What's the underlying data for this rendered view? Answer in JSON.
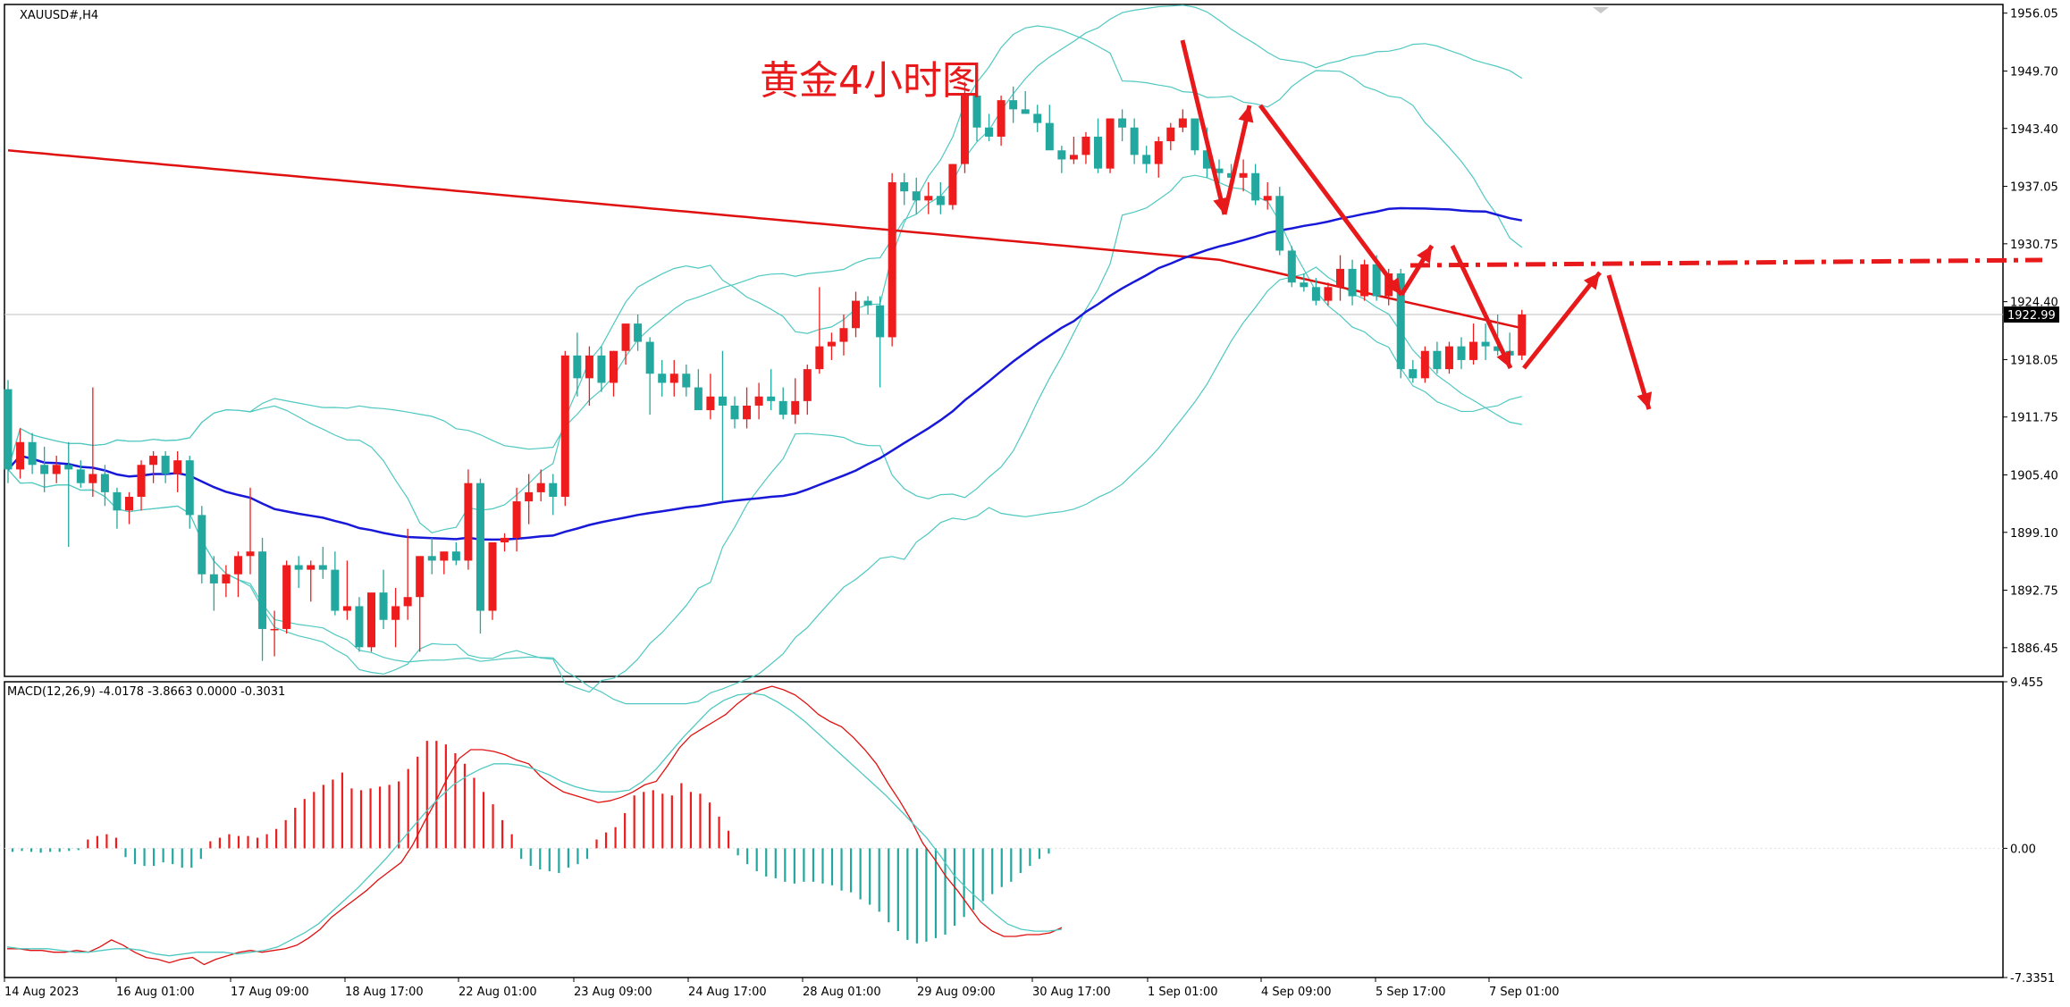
{
  "chart_data": [
    {
      "type": "candlestick",
      "symbol_label": "XAUUSD#,H4",
      "title": "黄金4小时图",
      "ylim": [
        1883.3,
        1957.0
      ],
      "y_ticks": [
        "1956.05",
        "1949.70",
        "1943.40",
        "1937.05",
        "1930.75",
        "1924.40",
        "1918.05",
        "1911.75",
        "1905.40",
        "1899.10",
        "1892.75",
        "1886.45"
      ],
      "current_price": "1922.99",
      "x_labels": [
        "14 Aug 2023",
        "16 Aug 01:00",
        "17 Aug 09:00",
        "18 Aug 17:00",
        "22 Aug 01:00",
        "23 Aug 09:00",
        "24 Aug 17:00",
        "28 Aug 01:00",
        "29 Aug 09:00",
        "30 Aug 17:00",
        "1 Sep 01:00",
        "4 Sep 09:00",
        "5 Sep 17:00",
        "7 Sep 01:00"
      ],
      "candles": [
        [
          1914.8,
          1915.8,
          1904.5,
          1906.0
        ],
        [
          1906.0,
          1910.5,
          1905.0,
          1909.0
        ],
        [
          1909.0,
          1910.0,
          1905.5,
          1906.5
        ],
        [
          1906.5,
          1908.5,
          1903.5,
          1905.5
        ],
        [
          1905.5,
          1907.5,
          1904.5,
          1906.5
        ],
        [
          1906.5,
          1909.0,
          1897.5,
          1906.0
        ],
        [
          1906.0,
          1907.0,
          1904.0,
          1904.5
        ],
        [
          1904.5,
          1915.0,
          1903.0,
          1905.5
        ],
        [
          1905.5,
          1906.5,
          1902.0,
          1903.5
        ],
        [
          1903.5,
          1904.0,
          1899.5,
          1901.5
        ],
        [
          1901.5,
          1903.5,
          1900.0,
          1903.0
        ],
        [
          1903.0,
          1907.0,
          1901.5,
          1906.5
        ],
        [
          1906.5,
          1908.0,
          1904.5,
          1907.5
        ],
        [
          1907.5,
          1908.0,
          1904.5,
          1905.5
        ],
        [
          1905.5,
          1908.0,
          1903.5,
          1907.0
        ],
        [
          1907.0,
          1907.5,
          1899.5,
          1901.0
        ],
        [
          1901.0,
          1902.0,
          1893.5,
          1894.5
        ],
        [
          1894.5,
          1896.5,
          1890.5,
          1893.5
        ],
        [
          1893.5,
          1895.5,
          1892.0,
          1894.5
        ],
        [
          1894.5,
          1897.0,
          1892.0,
          1896.5
        ],
        [
          1896.5,
          1904.0,
          1894.5,
          1897.0
        ],
        [
          1897.0,
          1898.5,
          1885.0,
          1888.5
        ],
        [
          1888.5,
          1890.5,
          1885.5,
          1888.5
        ],
        [
          1888.5,
          1896.0,
          1888.0,
          1895.5
        ],
        [
          1895.5,
          1896.5,
          1893.0,
          1895.0
        ],
        [
          1895.0,
          1896.0,
          1891.5,
          1895.5
        ],
        [
          1895.5,
          1897.5,
          1894.0,
          1895.0
        ],
        [
          1895.0,
          1897.0,
          1890.0,
          1890.5
        ],
        [
          1890.5,
          1896.0,
          1889.5,
          1891.0
        ],
        [
          1891.0,
          1892.0,
          1886.0,
          1886.5
        ],
        [
          1886.5,
          1892.0,
          1886.0,
          1892.5
        ],
        [
          1892.5,
          1895.0,
          1888.5,
          1889.5
        ],
        [
          1889.5,
          1893.0,
          1886.5,
          1891.0
        ],
        [
          1891.0,
          1899.5,
          1889.5,
          1892.0
        ],
        [
          1892.0,
          1896.0,
          1886.0,
          1896.5
        ],
        [
          1896.5,
          1898.5,
          1894.5,
          1896.0
        ],
        [
          1896.0,
          1897.0,
          1894.5,
          1897.0
        ],
        [
          1897.0,
          1898.0,
          1895.5,
          1896.0
        ],
        [
          1896.0,
          1906.0,
          1895.0,
          1904.5
        ],
        [
          1904.5,
          1905.0,
          1888.0,
          1890.5
        ],
        [
          1890.5,
          1898.0,
          1889.5,
          1898.0
        ],
        [
          1898.0,
          1899.0,
          1897.0,
          1898.5
        ],
        [
          1898.5,
          1904.0,
          1897.0,
          1902.5
        ],
        [
          1902.5,
          1905.5,
          1900.0,
          1903.5
        ],
        [
          1903.5,
          1906.0,
          1902.5,
          1904.5
        ],
        [
          1904.5,
          1905.5,
          1901.0,
          1903.0
        ],
        [
          1903.0,
          1919.0,
          1902.0,
          1918.5
        ],
        [
          1918.5,
          1921.0,
          1914.0,
          1916.0
        ],
        [
          1916.0,
          1919.5,
          1913.0,
          1918.5
        ],
        [
          1918.5,
          1919.5,
          1914.5,
          1915.5
        ],
        [
          1915.5,
          1919.0,
          1914.0,
          1919.0
        ],
        [
          1919.0,
          1922.0,
          1917.5,
          1922.0
        ],
        [
          1922.0,
          1923.0,
          1919.0,
          1920.0
        ],
        [
          1920.0,
          1920.5,
          1912.0,
          1916.5
        ],
        [
          1916.5,
          1918.0,
          1914.0,
          1915.5
        ],
        [
          1915.5,
          1918.0,
          1914.0,
          1916.5
        ],
        [
          1916.5,
          1917.5,
          1914.0,
          1915.0
        ],
        [
          1915.0,
          1917.0,
          1913.0,
          1912.5
        ],
        [
          1912.5,
          1916.5,
          1911.5,
          1914.0
        ],
        [
          1914.0,
          1919.0,
          1902.5,
          1913.0
        ],
        [
          1913.0,
          1914.0,
          1910.5,
          1911.5
        ],
        [
          1911.5,
          1915.0,
          1910.5,
          1913.0
        ],
        [
          1913.0,
          1915.5,
          1911.5,
          1914.0
        ],
        [
          1914.0,
          1917.0,
          1912.5,
          1913.5
        ],
        [
          1913.5,
          1915.0,
          1911.5,
          1912.0
        ],
        [
          1912.0,
          1916.0,
          1911.0,
          1913.5
        ],
        [
          1913.5,
          1917.5,
          1912.0,
          1917.0
        ],
        [
          1917.0,
          1926.0,
          1916.5,
          1919.5
        ],
        [
          1919.5,
          1921.0,
          1918.0,
          1920.0
        ],
        [
          1920.0,
          1923.0,
          1918.5,
          1921.5
        ],
        [
          1921.5,
          1925.5,
          1920.5,
          1924.5
        ],
        [
          1924.5,
          1925.0,
          1923.0,
          1924.0
        ],
        [
          1924.0,
          1925.0,
          1915.0,
          1920.5
        ],
        [
          1920.5,
          1938.5,
          1919.5,
          1937.5
        ],
        [
          1937.5,
          1938.5,
          1935.0,
          1936.5
        ],
        [
          1936.5,
          1938.0,
          1934.0,
          1935.5
        ],
        [
          1935.5,
          1937.5,
          1934.0,
          1936.0
        ],
        [
          1936.0,
          1937.5,
          1934.0,
          1935.0
        ],
        [
          1935.0,
          1939.5,
          1934.5,
          1939.5
        ],
        [
          1939.5,
          1948.5,
          1938.5,
          1947.0
        ],
        [
          1947.0,
          1948.5,
          1942.0,
          1943.5
        ],
        [
          1943.5,
          1945.0,
          1942.0,
          1942.5
        ],
        [
          1942.5,
          1947.0,
          1941.5,
          1946.5
        ],
        [
          1946.5,
          1948.0,
          1944.0,
          1945.5
        ],
        [
          1945.5,
          1947.5,
          1945.0,
          1945.0
        ],
        [
          1945.0,
          1946.0,
          1943.0,
          1944.0
        ],
        [
          1944.0,
          1946.0,
          1941.5,
          1941.0
        ],
        [
          1941.0,
          1941.5,
          1938.5,
          1940.0
        ],
        [
          1940.0,
          1942.5,
          1939.5,
          1940.5
        ],
        [
          1940.5,
          1943.0,
          1939.5,
          1942.5
        ],
        [
          1942.5,
          1944.5,
          1938.5,
          1939.0
        ],
        [
          1939.0,
          1944.5,
          1938.5,
          1944.5
        ],
        [
          1944.5,
          1945.5,
          1942.0,
          1943.5
        ],
        [
          1943.5,
          1944.5,
          1939.5,
          1940.5
        ],
        [
          1940.5,
          1941.5,
          1938.5,
          1939.5
        ],
        [
          1939.5,
          1942.5,
          1938.0,
          1942.0
        ],
        [
          1942.0,
          1944.0,
          1941.0,
          1943.5
        ],
        [
          1943.5,
          1945.5,
          1943.0,
          1944.5
        ],
        [
          1944.5,
          1944.5,
          1940.5,
          1941.0
        ],
        [
          1941.0,
          1943.5,
          1938.0,
          1939.0
        ],
        [
          1939.0,
          1940.0,
          1937.5,
          1938.5
        ],
        [
          1938.5,
          1939.5,
          1937.0,
          1938.0
        ],
        [
          1938.0,
          1940.0,
          1936.5,
          1938.5
        ],
        [
          1938.5,
          1939.5,
          1935.0,
          1935.5
        ],
        [
          1935.5,
          1937.5,
          1934.5,
          1936.0
        ],
        [
          1936.0,
          1937.0,
          1929.5,
          1930.0
        ],
        [
          1930.0,
          1930.5,
          1926.0,
          1926.5
        ],
        [
          1926.5,
          1927.5,
          1925.5,
          1926.0
        ],
        [
          1926.0,
          1927.0,
          1924.0,
          1924.5
        ],
        [
          1924.5,
          1926.5,
          1924.0,
          1926.0
        ],
        [
          1926.0,
          1929.5,
          1924.5,
          1928.0
        ],
        [
          1928.0,
          1929.0,
          1924.0,
          1925.0
        ],
        [
          1925.0,
          1929.0,
          1924.5,
          1928.5
        ],
        [
          1928.5,
          1929.5,
          1924.5,
          1925.0
        ],
        [
          1925.0,
          1928.0,
          1924.0,
          1927.5
        ],
        [
          1927.5,
          1928.0,
          1916.0,
          1917.0
        ],
        [
          1917.0,
          1918.0,
          1915.5,
          1916.0
        ],
        [
          1916.0,
          1919.5,
          1915.5,
          1919.0
        ],
        [
          1919.0,
          1920.0,
          1916.5,
          1917.0
        ],
        [
          1917.0,
          1920.0,
          1916.5,
          1919.5
        ],
        [
          1919.5,
          1920.5,
          1917.0,
          1918.0
        ],
        [
          1918.0,
          1922.0,
          1917.5,
          1920.0
        ],
        [
          1920.0,
          1922.0,
          1918.0,
          1919.5
        ],
        [
          1919.5,
          1923.0,
          1918.5,
          1919.0
        ],
        [
          1919.0,
          1921.0,
          1917.5,
          1918.5
        ],
        [
          1918.5,
          1923.5,
          1918.0,
          1923.0
        ]
      ]
    },
    {
      "type": "macd",
      "label": "MACD(12,26,9) -4.0178 -3.8663 0.0000 -0.3031",
      "ylim": [
        -7.3351,
        9.455
      ],
      "y_ticks": [
        "9.455",
        "0.00",
        "-7.3351"
      ],
      "histogram": [
        -0.2,
        -0.15,
        -0.2,
        -0.25,
        -0.2,
        -0.2,
        -0.15,
        -0.1,
        0.5,
        0.7,
        0.8,
        0.6,
        -0.5,
        -0.9,
        -1.0,
        -1.0,
        -0.8,
        -0.9,
        -1.1,
        -1.1,
        -0.6,
        0.4,
        0.6,
        0.8,
        0.7,
        0.7,
        0.6,
        0.8,
        1.1,
        1.6,
        2.3,
        2.8,
        3.2,
        3.6,
        3.9,
        4.3,
        3.4,
        3.3,
        3.4,
        3.5,
        3.6,
        3.8,
        4.5,
        5.2,
        6.1,
        6.1,
        5.9,
        5.4,
        4.8,
        4.0,
        3.2,
        2.5,
        1.6,
        0.8,
        -0.6,
        -1.0,
        -1.2,
        -1.3,
        -1.4,
        -1.1,
        -0.9,
        -0.6,
        0.5,
        0.9,
        1.2,
        2.0,
        3.0,
        3.2,
        3.3,
        3.1,
        3.0,
        3.7,
        3.2,
        3.1,
        2.6,
        1.8,
        1.0,
        -0.4,
        -0.9,
        -1.3,
        -1.6,
        -1.7,
        -1.9,
        -2.0,
        -1.9,
        -1.9,
        -2.0,
        -2.1,
        -2.4,
        -2.5,
        -2.9,
        -3.2,
        -3.6,
        -4.2,
        -4.7,
        -5.2,
        -5.4,
        -5.3,
        -5.1,
        -4.9,
        -4.4,
        -3.9,
        -3.5,
        -3.0,
        -2.6,
        -2.2,
        -1.9,
        -1.4,
        -1.0,
        -0.6,
        -0.3
      ],
      "macd_line": [
        -5.7,
        -5.7,
        -5.8,
        -5.8,
        -5.9,
        -5.9,
        -5.8,
        -5.9,
        -5.6,
        -5.2,
        -5.5,
        -5.9,
        -6.2,
        -6.3,
        -6.5,
        -6.3,
        -6.2,
        -6.6,
        -6.3,
        -6.1,
        -5.9,
        -5.8,
        -5.9,
        -5.8,
        -5.7,
        -5.5,
        -5.1,
        -4.6,
        -3.9,
        -3.4,
        -2.9,
        -2.4,
        -1.8,
        -1.3,
        -0.8,
        0.2,
        1.5,
        2.7,
        4.0,
        5.1,
        5.6,
        5.6,
        5.5,
        5.3,
        5.0,
        4.8,
        4.1,
        3.6,
        3.2,
        3.0,
        2.8,
        2.6,
        2.7,
        2.9,
        3.2,
        3.6,
        3.8,
        4.7,
        5.7,
        6.4,
        6.8,
        7.2,
        7.6,
        8.2,
        8.7,
        9.0,
        9.2,
        9.0,
        8.7,
        8.2,
        7.6,
        7.2,
        6.9,
        6.3,
        5.6,
        4.8,
        3.7,
        2.7,
        1.6,
        0.3,
        -0.6,
        -1.6,
        -2.4,
        -3.3,
        -4.2,
        -4.7,
        -5.0,
        -5.0,
        -4.9,
        -4.9,
        -4.8,
        -4.5
      ],
      "signal_line": [
        -5.6,
        -5.7,
        -5.7,
        -5.7,
        -5.8,
        -5.9,
        -5.9,
        -5.8,
        -5.7,
        -5.7,
        -5.8,
        -6.0,
        -6.1,
        -6.0,
        -5.9,
        -5.9,
        -5.9,
        -6.0,
        -5.9,
        -5.8,
        -5.6,
        -5.2,
        -4.8,
        -4.3,
        -3.6,
        -2.9,
        -2.2,
        -1.4,
        -0.6,
        0.3,
        1.2,
        2.1,
        2.9,
        3.6,
        4.1,
        4.5,
        4.8,
        4.8,
        4.7,
        4.5,
        4.2,
        3.8,
        3.5,
        3.3,
        3.2,
        3.2,
        3.3,
        3.8,
        4.5,
        5.4,
        6.3,
        7.1,
        7.9,
        8.4,
        8.7,
        8.8,
        8.7,
        8.3,
        7.8,
        7.2,
        6.5,
        5.8,
        5.1,
        4.4,
        3.7,
        3.0,
        2.2,
        1.4,
        0.6,
        -0.4,
        -1.5,
        -2.3,
        -3.0,
        -3.7,
        -4.3,
        -4.6,
        -4.7,
        -4.7,
        -4.6
      ]
    }
  ]
}
